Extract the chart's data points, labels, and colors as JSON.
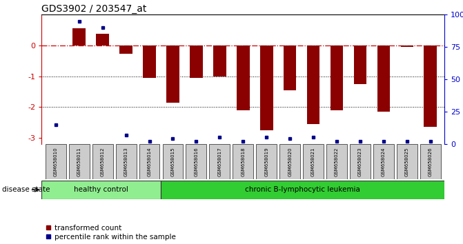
{
  "title": "GDS3902 / 203547_at",
  "samples": [
    "GSM658010",
    "GSM658011",
    "GSM658012",
    "GSM658013",
    "GSM658014",
    "GSM658015",
    "GSM658016",
    "GSM658017",
    "GSM658018",
    "GSM658019",
    "GSM658020",
    "GSM658021",
    "GSM658022",
    "GSM658023",
    "GSM658024",
    "GSM658025",
    "GSM658026"
  ],
  "red_values": [
    0.0,
    0.55,
    0.38,
    -0.28,
    -1.05,
    -1.85,
    -1.05,
    -1.0,
    -2.1,
    -2.75,
    -1.45,
    -2.55,
    -2.1,
    -1.25,
    -2.15,
    -0.05,
    -2.65
  ],
  "blue_percentile": [
    15,
    95,
    90,
    7,
    2,
    4,
    2,
    5,
    2,
    5,
    4,
    5,
    2,
    2,
    2,
    2,
    2
  ],
  "healthy_count": 5,
  "disease_groups": [
    {
      "label": "healthy control",
      "count": 5,
      "color": "#90ee90"
    },
    {
      "label": "chronic B-lymphocytic leukemia",
      "count": 12,
      "color": "#32cd32"
    }
  ],
  "ylim_left": [
    -3.2,
    1.0
  ],
  "ylim_right": [
    0,
    100
  ],
  "yticks_left": [
    -3,
    -2,
    -1,
    0
  ],
  "yticks_right": [
    0,
    25,
    50,
    75,
    100
  ],
  "ytick_right_labels": [
    "0",
    "25",
    "50",
    "75",
    "100%"
  ],
  "bar_color": "#8B0000",
  "dot_color": "#00008B",
  "hline_color": "#cc0000",
  "grid_color": "#000000",
  "bg_color": "#ffffff",
  "legend_red_label": "transformed count",
  "legend_blue_label": "percentile rank within the sample",
  "disease_label": "disease state"
}
